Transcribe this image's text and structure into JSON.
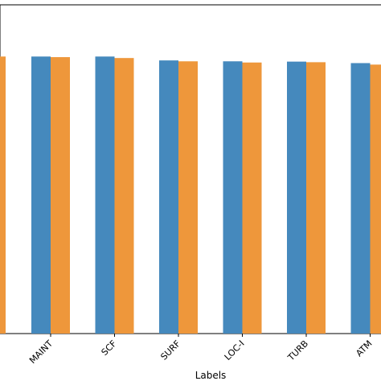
{
  "chart_data": {
    "type": "bar",
    "categories": [
      "MAINT",
      "SCF",
      "SURF",
      "LOC-I",
      "TURB",
      "ATM"
    ],
    "series": [
      {
        "values": [
          0.927,
          0.927,
          0.914,
          0.911,
          0.91,
          0.905
        ],
        "color": "#4589bd"
      },
      {
        "values": [
          0.925,
          0.922,
          0.911,
          0.907,
          0.908,
          0.9
        ],
        "color": "#ee973b"
      }
    ],
    "partial_leading_series2_value": 0.927,
    "xlabel": "Labels",
    "ylim": [
      0,
      1.1
    ],
    "grid": false,
    "legend": "none"
  }
}
